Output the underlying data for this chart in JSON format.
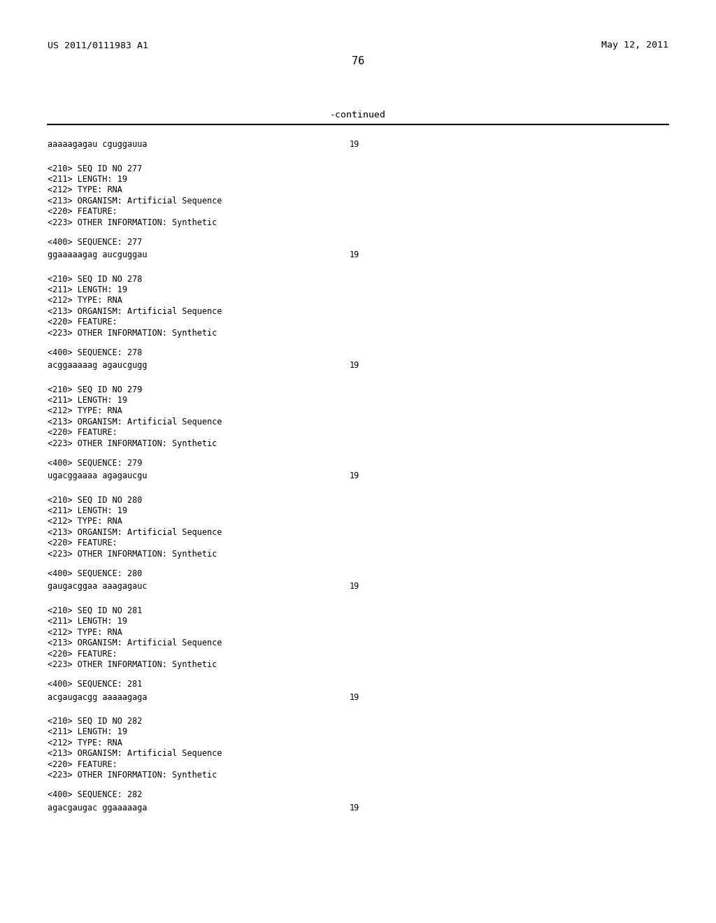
{
  "bg_color": "#ffffff",
  "header_left": "US 2011/0111983 A1",
  "header_right": "May 12, 2011",
  "page_number": "76",
  "continued_text": "-continued",
  "sequences": [
    {
      "seq": "aaaaagagau cguggauua",
      "num": "19"
    },
    {
      "seq": "ggaaaaagag aucguggau",
      "num": "19"
    },
    {
      "seq": "acggaaaaag agaucgugg",
      "num": "19"
    },
    {
      "seq": "ugacggaaaa agagaucgu",
      "num": "19"
    },
    {
      "seq": "gaugacggaa aaagagauc",
      "num": "19"
    },
    {
      "seq": "acgaugacgg aaaaagaga",
      "num": "19"
    },
    {
      "seq": "agacgaugac ggaaaaaga",
      "num": "19"
    }
  ],
  "blocks": [
    {
      "seq_no": "277",
      "meta": [
        "<210> SEQ ID NO 277",
        "<211> LENGTH: 19",
        "<212> TYPE: RNA",
        "<213> ORGANISM: Artificial Sequence",
        "<220> FEATURE:",
        "<223> OTHER INFORMATION: Synthetic"
      ]
    },
    {
      "seq_no": "278",
      "meta": [
        "<210> SEQ ID NO 278",
        "<211> LENGTH: 19",
        "<212> TYPE: RNA",
        "<213> ORGANISM: Artificial Sequence",
        "<220> FEATURE:",
        "<223> OTHER INFORMATION: Synthetic"
      ]
    },
    {
      "seq_no": "279",
      "meta": [
        "<210> SEQ ID NO 279",
        "<211> LENGTH: 19",
        "<212> TYPE: RNA",
        "<213> ORGANISM: Artificial Sequence",
        "<220> FEATURE:",
        "<223> OTHER INFORMATION: Synthetic"
      ]
    },
    {
      "seq_no": "280",
      "meta": [
        "<210> SEQ ID NO 280",
        "<211> LENGTH: 19",
        "<212> TYPE: RNA",
        "<213> ORGANISM: Artificial Sequence",
        "<220> FEATURE:",
        "<223> OTHER INFORMATION: Synthetic"
      ]
    },
    {
      "seq_no": "281",
      "meta": [
        "<210> SEQ ID NO 281",
        "<211> LENGTH: 19",
        "<212> TYPE: RNA",
        "<213> ORGANISM: Artificial Sequence",
        "<220> FEATURE:",
        "<223> OTHER INFORMATION: Synthetic"
      ]
    },
    {
      "seq_no": "282",
      "meta": [
        "<210> SEQ ID NO 282",
        "<211> LENGTH: 19",
        "<212> TYPE: RNA",
        "<213> ORGANISM: Artificial Sequence",
        "<220> FEATURE:",
        "<223> OTHER INFORMATION: Synthetic"
      ]
    }
  ]
}
